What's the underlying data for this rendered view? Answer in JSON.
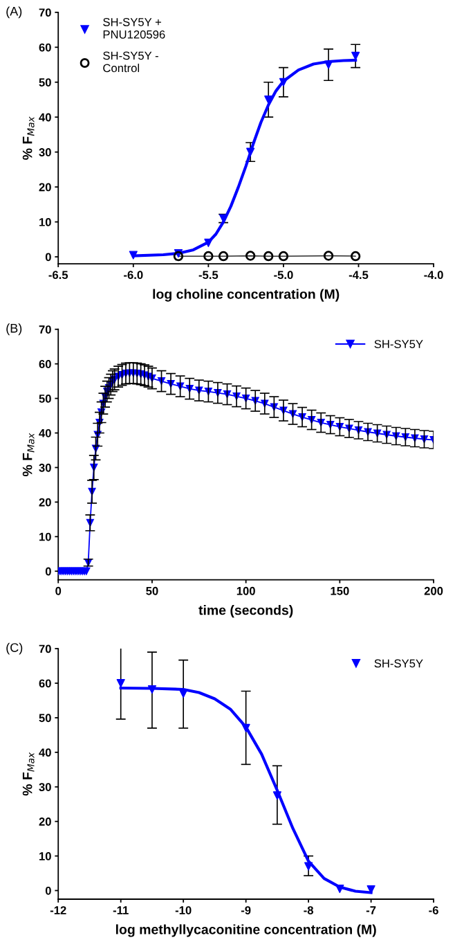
{
  "chart_data": [
    {
      "type": "scatter",
      "title": "(A)",
      "xlabel": "log choline concentration (M)",
      "ylabel": "% F$_{Max}$",
      "xlim": [
        -6.5,
        -4.0
      ],
      "xticks": [
        {
          "value": -6.5,
          "label": "-6.5"
        },
        {
          "value": -6.0,
          "label": "-6.0"
        },
        {
          "value": -5.5,
          "label": "-5.5"
        },
        {
          "value": -5.0,
          "label": "-5.0"
        },
        {
          "value": -4.5,
          "label": "-4.5"
        },
        {
          "value": -4.0,
          "label": "-4.0"
        }
      ],
      "ylim": [
        -2,
        70
      ],
      "yticks": [
        0,
        10,
        20,
        30,
        40,
        50,
        60,
        70
      ],
      "grid": false,
      "legend": "top left",
      "series": [
        {
          "name": "SH-SY5Y + PNU120596",
          "type": "scatter",
          "marker": "triangle",
          "color": "#0000ff",
          "x": [
            -6.0,
            -5.7,
            -5.5,
            -5.4,
            -5.22,
            -5.1,
            -5.0,
            -4.7,
            -4.52
          ],
          "values": [
            0.5,
            1,
            4,
            11,
            30,
            45,
            50,
            55,
            57.5
          ],
          "errors": [
            null,
            null,
            null,
            1.2,
            2.7,
            5,
            4.2,
            4.5,
            3.3
          ]
        },
        {
          "type": "line",
          "marker": "none",
          "color": "#0000ff",
          "x": [
            -6.0,
            -5.8,
            -5.7,
            -5.6,
            -5.5,
            -5.45,
            -5.4,
            -5.35,
            -5.3,
            -5.25,
            -5.2,
            -5.15,
            -5.1,
            -5.05,
            -5.0,
            -4.9,
            -4.8,
            -4.7,
            -4.6,
            -4.52
          ],
          "values": [
            0.3,
            0.6,
            1.0,
            2.0,
            4.2,
            6.5,
            10,
            14.5,
            20,
            26,
            32.5,
            38.5,
            43.5,
            47.5,
            50.3,
            53.5,
            55.2,
            55.9,
            56.2,
            56.3
          ]
        },
        {
          "name": "SH-SY5Y - Control",
          "type": "line",
          "marker": "circle",
          "color": "#000000",
          "x": [
            -5.7,
            -5.5,
            -5.4,
            -5.22,
            -5.1,
            -5.0,
            -4.7,
            -4.52
          ],
          "values": [
            0.2,
            0.2,
            0.2,
            0.3,
            0.2,
            0.2,
            0.3,
            0.2
          ]
        }
      ]
    },
    {
      "type": "line",
      "title": "(B)",
      "xlabel": "time (seconds)",
      "ylabel": "% F$_{Max}$",
      "xlim": [
        0,
        200
      ],
      "xticks": [
        0,
        50,
        100,
        150,
        200
      ],
      "ylim": [
        -2.5,
        70
      ],
      "yticks": [
        0,
        10,
        20,
        30,
        40,
        50,
        60,
        70
      ],
      "grid": false,
      "legend": "top right",
      "series": [
        {
          "name": "SH-SY5Y",
          "type": "line",
          "marker": "triangle",
          "color": "#0000ff",
          "x": [
            0,
            1,
            2,
            3,
            4,
            5,
            6,
            7,
            8,
            9,
            10,
            11,
            12,
            13,
            14,
            15,
            16,
            17,
            18,
            19,
            20,
            21,
            22,
            23,
            24,
            25,
            26,
            27,
            28,
            29,
            30,
            32,
            34,
            36,
            38,
            40,
            42,
            44,
            46,
            48,
            50,
            55,
            60,
            65,
            70,
            75,
            80,
            85,
            90,
            95,
            100,
            105,
            110,
            115,
            120,
            125,
            130,
            135,
            140,
            145,
            150,
            155,
            160,
            165,
            170,
            175,
            180,
            185,
            190,
            195,
            200
          ],
          "values": [
            0,
            0,
            0,
            0,
            0,
            0,
            0,
            0,
            0,
            0,
            0,
            0,
            0,
            0,
            0,
            0,
            2.5,
            14,
            23,
            30,
            35.5,
            39.5,
            43,
            46,
            48.5,
            50.5,
            52,
            53,
            54,
            55,
            55.5,
            56.3,
            56.8,
            57.2,
            57.3,
            57.3,
            57.2,
            57,
            56.7,
            56.3,
            55.8,
            55,
            54.2,
            53.5,
            52.8,
            52.3,
            52,
            51.6,
            51.2,
            50.6,
            50,
            49.3,
            48.5,
            47.5,
            46.5,
            45.5,
            44.6,
            43.8,
            43,
            42.4,
            41.8,
            41.3,
            40.8,
            40.3,
            39.9,
            39.5,
            39.1,
            38.8,
            38.5,
            38.2,
            38
          ],
          "errors": [
            null,
            null,
            null,
            null,
            null,
            null,
            null,
            null,
            null,
            null,
            null,
            null,
            null,
            null,
            null,
            null,
            1,
            2.3,
            3.3,
            3.5,
            3.3,
            3.3,
            3,
            3,
            3,
            3,
            3,
            3,
            3,
            3,
            3,
            3,
            3,
            3,
            3,
            3,
            3,
            3,
            3,
            3,
            3,
            3,
            3,
            3,
            3,
            3,
            3,
            3,
            3,
            3,
            3,
            3,
            3,
            3,
            3,
            3,
            2.8,
            2.8,
            2.8,
            2.6,
            2.6,
            2.6,
            2.5,
            2.5,
            2.5,
            2.5,
            2.5,
            2.5,
            2.5,
            2.5,
            2.5
          ]
        }
      ]
    },
    {
      "type": "scatter",
      "title": "(C)",
      "xlabel": "log methyllycaconitine concentration (M)",
      "ylabel": "% F$_{Max}$",
      "xlim": [
        -12,
        -6
      ],
      "xticks": [
        -12,
        -11,
        -10,
        -9,
        -8,
        -7,
        -6
      ],
      "ylim": [
        -2.5,
        70
      ],
      "yticks": [
        0,
        10,
        20,
        30,
        40,
        50,
        60,
        70
      ],
      "grid": false,
      "legend": "top right",
      "series": [
        {
          "name": "SH-SY5Y",
          "type": "scatter",
          "marker": "triangle",
          "color": "#0000ff",
          "x": [
            -11,
            -10.5,
            -10,
            -9,
            -8.5,
            -8,
            -7.5,
            -7
          ],
          "values": [
            60,
            58.2,
            57,
            47,
            27.5,
            7,
            0.5,
            0.3
          ],
          "errors": [
            [
              49.6,
              70.5
            ],
            [
              47,
              69
            ],
            [
              47,
              66.7
            ],
            [
              36.5,
              57.7
            ],
            [
              19.2,
              36.1
            ],
            [
              4.3,
              10
            ],
            null,
            null
          ]
        },
        {
          "type": "line",
          "marker": "none",
          "color": "#0000ff",
          "x": [
            -11,
            -10.5,
            -10,
            -9.75,
            -9.5,
            -9.25,
            -9,
            -8.75,
            -8.5,
            -8.25,
            -8,
            -7.75,
            -7.5,
            -7.25,
            -7
          ],
          "values": [
            58.6,
            58.5,
            58.2,
            57.3,
            55.5,
            52.5,
            47.3,
            39.5,
            29,
            18,
            8.5,
            3.5,
            1,
            -0.2,
            -0.6
          ]
        }
      ]
    }
  ]
}
